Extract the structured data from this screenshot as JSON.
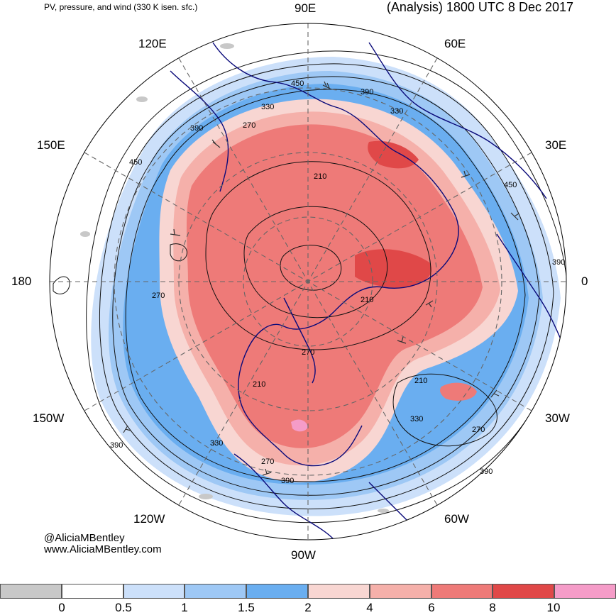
{
  "header": {
    "left_title": "PV, pressure, and wind (330 K isen. sfc.)",
    "right_title": "(Analysis) 1800 UTC 8 Dec 2017"
  },
  "credits": {
    "twitter": "@AliciaMBentley",
    "website": "www.AliciaMBentley.com"
  },
  "longitude_labels": {
    "lon_90e": "90E",
    "lon_120e": "120E",
    "lon_60e": "60E",
    "lon_150e": "150E",
    "lon_30e": "30E",
    "lon_180": "180",
    "lon_0": "0",
    "lon_150w": "150W",
    "lon_30w": "30W",
    "lon_120w": "120W",
    "lon_60w": "60W",
    "lon_90w": "90W"
  },
  "contour_labels": {
    "c1": "450",
    "c2": "390",
    "c3": "330",
    "c4": "330",
    "c5": "270",
    "c6": "390",
    "c7": "450",
    "c8": "210",
    "c9": "450",
    "c10": "270",
    "c11": "390",
    "c12": "210",
    "c13": "270",
    "c14": "210",
    "c15": "210",
    "c16": "330",
    "c17": "270",
    "c18": "390",
    "c19": "330",
    "c20": "270",
    "c21": "390"
  },
  "colors": {
    "pv_0": "#c8c8c8",
    "pv_05": "#ffffff",
    "pv_1": "#cce0fa",
    "pv_15": "#9ec8f5",
    "pv_2": "#6aaef0",
    "pv_4": "#f8d6d2",
    "pv_6": "#f5b0aa",
    "pv_8": "#ee7a78",
    "pv_10": "#e04848",
    "pv_top": "#f59cc8",
    "coast": "#0a0a7a",
    "contour": "#111111"
  },
  "legend": {
    "labels": [
      "0",
      "0.5",
      "1",
      "1.5",
      "2",
      "4",
      "6",
      "8",
      "10"
    ]
  }
}
